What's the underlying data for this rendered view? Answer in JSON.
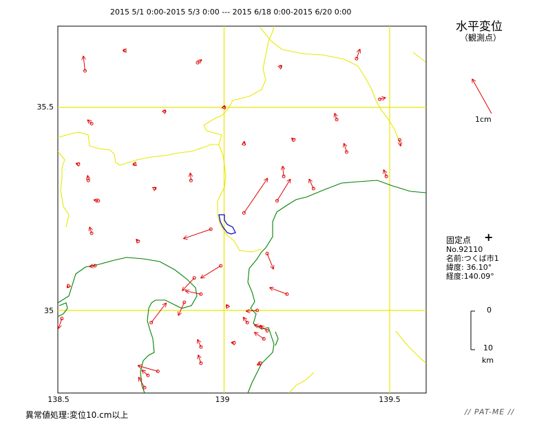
{
  "header": "2015 5/1 0:00-2015 5/3 0:00 --- 2015 6/18 0:00-2015 6/20 0:00",
  "title": "水平変位",
  "subtitle": "（観測点）",
  "scale_label": "1cm",
  "fixed_point": {
    "title": "固定点",
    "number": "No.92110",
    "name": "名前:つくば市1",
    "latitude": "緯度: 36.10°",
    "longitude": "経度:140.09°"
  },
  "km_scale": {
    "zero": "0",
    "ten": "10",
    "unit": "km"
  },
  "axes": {
    "x_ticks": [
      "138.5",
      "139",
      "139.5"
    ],
    "y_ticks": [
      "35.5",
      "35"
    ]
  },
  "footer_left": "異常値処理:変位10.cm以上",
  "footer_right": "// PAT-ME //",
  "colors": {
    "grid": "#e8e800",
    "coast": "#008000",
    "vector": "#dd0000",
    "border": "#e8e800",
    "lake": "#0000cc"
  },
  "vectors": [
    {
      "lon": 138.58,
      "lat": 35.59,
      "dlon": -0.005,
      "dlat": 0.036
    },
    {
      "lon": 138.7,
      "lat": 35.64,
      "dlon": -0.005,
      "dlat": 0.0
    },
    {
      "lon": 138.6,
      "lat": 35.46,
      "dlon": -0.012,
      "dlat": 0.009
    },
    {
      "lon": 138.82,
      "lat": 35.49,
      "dlon": 0.003,
      "dlat": 0.003
    },
    {
      "lon": 139.0,
      "lat": 35.5,
      "dlon": 0.002,
      "dlat": 0.004
    },
    {
      "lon": 138.92,
      "lat": 35.61,
      "dlon": 0.012,
      "dlat": 0.007
    },
    {
      "lon": 139.17,
      "lat": 35.6,
      "dlon": 0.004,
      "dlat": 0.003
    },
    {
      "lon": 139.4,
      "lat": 35.62,
      "dlon": 0.01,
      "dlat": 0.023
    },
    {
      "lon": 139.47,
      "lat": 35.52,
      "dlon": 0.017,
      "dlat": 0.004
    },
    {
      "lon": 139.34,
      "lat": 35.47,
      "dlon": -0.006,
      "dlat": 0.015
    },
    {
      "lon": 139.21,
      "lat": 35.42,
      "dlon": -0.006,
      "dlat": 0.004
    },
    {
      "lon": 139.37,
      "lat": 35.39,
      "dlon": -0.008,
      "dlat": 0.021
    },
    {
      "lon": 139.53,
      "lat": 35.42,
      "dlon": 0.003,
      "dlat": -0.015
    },
    {
      "lon": 139.06,
      "lat": 35.41,
      "dlon": 0.001,
      "dlat": 0.006
    },
    {
      "lon": 139.18,
      "lat": 35.33,
      "dlon": -0.003,
      "dlat": 0.025
    },
    {
      "lon": 139.27,
      "lat": 35.3,
      "dlon": -0.013,
      "dlat": 0.023
    },
    {
      "lon": 139.49,
      "lat": 35.33,
      "dlon": -0.008,
      "dlat": 0.016
    },
    {
      "lon": 138.56,
      "lat": 35.36,
      "dlon": -0.007,
      "dlat": 0.002
    },
    {
      "lon": 138.73,
      "lat": 35.36,
      "dlon": -0.005,
      "dlat": -0.001
    },
    {
      "lon": 138.59,
      "lat": 35.32,
      "dlon": -0.002,
      "dlat": 0.012
    },
    {
      "lon": 138.79,
      "lat": 35.3,
      "dlon": 0.005,
      "dlat": 0.002
    },
    {
      "lon": 138.9,
      "lat": 35.32,
      "dlon": -0.002,
      "dlat": 0.018
    },
    {
      "lon": 139.06,
      "lat": 35.24,
      "dlon": 0.071,
      "dlat": 0.085
    },
    {
      "lon": 139.16,
      "lat": 35.27,
      "dlon": 0.04,
      "dlat": 0.053
    },
    {
      "lon": 138.62,
      "lat": 35.27,
      "dlon": -0.013,
      "dlat": 0.002
    },
    {
      "lon": 138.6,
      "lat": 35.19,
      "dlon": -0.006,
      "dlat": 0.015
    },
    {
      "lon": 138.96,
      "lat": 35.2,
      "dlon": -0.082,
      "dlat": -0.023
    },
    {
      "lon": 138.74,
      "lat": 35.17,
      "dlon": -0.005,
      "dlat": 0.005
    },
    {
      "lon": 138.61,
      "lat": 35.11,
      "dlon": -0.016,
      "dlat": -0.002
    },
    {
      "lon": 138.53,
      "lat": 35.06,
      "dlon": -0.004,
      "dlat": -0.004
    },
    {
      "lon": 138.91,
      "lat": 35.08,
      "dlon": -0.036,
      "dlat": -0.031
    },
    {
      "lon": 138.99,
      "lat": 35.11,
      "dlon": -0.06,
      "dlat": -0.03
    },
    {
      "lon": 139.13,
      "lat": 35.14,
      "dlon": 0.019,
      "dlat": -0.038
    },
    {
      "lon": 138.93,
      "lat": 35.04,
      "dlon": -0.046,
      "dlat": 0.008
    },
    {
      "lon": 139.19,
      "lat": 35.04,
      "dlon": -0.052,
      "dlat": 0.016
    },
    {
      "lon": 139.01,
      "lat": 35.01,
      "dlon": -0.003,
      "dlat": 0.004
    },
    {
      "lon": 138.88,
      "lat": 35.02,
      "dlon": -0.018,
      "dlat": -0.032
    },
    {
      "lon": 138.78,
      "lat": 34.97,
      "dlon": 0.045,
      "dlat": 0.048
    },
    {
      "lon": 138.51,
      "lat": 34.98,
      "dlon": -0.01,
      "dlat": -0.024
    },
    {
      "lon": 139.1,
      "lat": 35.0,
      "dlon": -0.033,
      "dlat": -0.002
    },
    {
      "lon": 139.07,
      "lat": 34.97,
      "dlon": -0.012,
      "dlat": 0.013
    },
    {
      "lon": 139.11,
      "lat": 34.96,
      "dlon": -0.018,
      "dlat": 0.004
    },
    {
      "lon": 139.13,
      "lat": 34.95,
      "dlon": -0.02,
      "dlat": 0.012
    },
    {
      "lon": 139.12,
      "lat": 34.93,
      "dlon": -0.028,
      "dlat": 0.016
    },
    {
      "lon": 138.93,
      "lat": 34.91,
      "dlon": -0.01,
      "dlat": 0.018
    },
    {
      "lon": 139.03,
      "lat": 34.92,
      "dlon": -0.008,
      "dlat": 0.001
    },
    {
      "lon": 139.11,
      "lat": 34.87,
      "dlon": -0.01,
      "dlat": -0.004
    },
    {
      "lon": 138.93,
      "lat": 34.87,
      "dlon": -0.008,
      "dlat": 0.02
    },
    {
      "lon": 138.8,
      "lat": 34.85,
      "dlon": -0.06,
      "dlat": 0.014
    },
    {
      "lon": 138.76,
      "lat": 34.81,
      "dlon": -0.018,
      "dlat": 0.025
    },
    {
      "lon": 138.77,
      "lat": 34.84,
      "dlon": -0.018,
      "dlat": 0.013
    }
  ]
}
